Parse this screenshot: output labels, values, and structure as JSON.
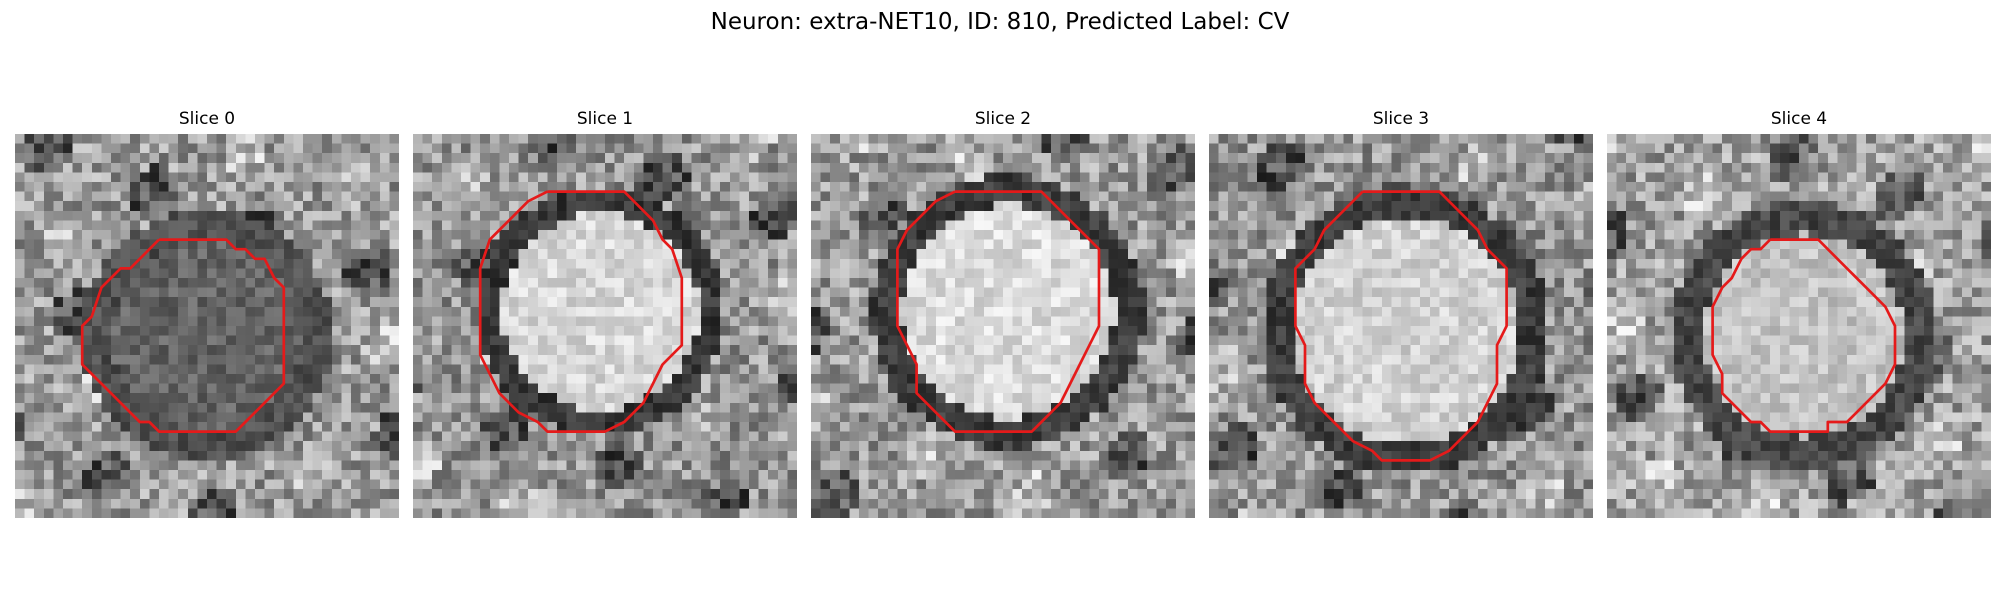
{
  "figure": {
    "title": "Neuron: extra-NET10, ID: 810, Predicted Label: CV"
  },
  "panels": [
    {
      "title": "Slice 0",
      "contour": [
        [
          15,
          11
        ],
        [
          22,
          11
        ],
        [
          23,
          12
        ],
        [
          24,
          12
        ],
        [
          25,
          13
        ],
        [
          26,
          13
        ],
        [
          27,
          15
        ],
        [
          28,
          16
        ],
        [
          28,
          26
        ],
        [
          27,
          27
        ],
        [
          26,
          28
        ],
        [
          25,
          29
        ],
        [
          24,
          30
        ],
        [
          23,
          31
        ],
        [
          15,
          31
        ],
        [
          14,
          30
        ],
        [
          13,
          30
        ],
        [
          12,
          29
        ],
        [
          11,
          28
        ],
        [
          10,
          27
        ],
        [
          9,
          26
        ],
        [
          8,
          25
        ],
        [
          7,
          24
        ],
        [
          7,
          20
        ],
        [
          8,
          19
        ],
        [
          9,
          16
        ],
        [
          10,
          15
        ],
        [
          11,
          14
        ],
        [
          12,
          14
        ],
        [
          13,
          13
        ],
        [
          14,
          12
        ]
      ]
    },
    {
      "title": "Slice 1",
      "contour": [
        [
          14,
          6
        ],
        [
          22,
          6
        ],
        [
          23,
          7
        ],
        [
          24,
          8
        ],
        [
          25,
          9
        ],
        [
          26,
          11
        ],
        [
          27,
          12
        ],
        [
          28,
          15
        ],
        [
          28,
          22
        ],
        [
          27,
          23
        ],
        [
          26,
          24
        ],
        [
          25,
          26
        ],
        [
          24,
          28
        ],
        [
          23,
          29
        ],
        [
          22,
          30
        ],
        [
          20,
          31
        ],
        [
          14,
          31
        ],
        [
          13,
          30
        ],
        [
          11,
          29
        ],
        [
          10,
          28
        ],
        [
          9,
          27
        ],
        [
          8,
          25
        ],
        [
          7,
          23
        ],
        [
          7,
          14
        ],
        [
          8,
          11
        ],
        [
          9,
          10
        ],
        [
          10,
          9
        ],
        [
          11,
          8
        ],
        [
          12,
          7
        ]
      ]
    },
    {
      "title": "Slice 2",
      "contour": [
        [
          15,
          6
        ],
        [
          24,
          6
        ],
        [
          25,
          7
        ],
        [
          26,
          8
        ],
        [
          27,
          9
        ],
        [
          28,
          10
        ],
        [
          29,
          11
        ],
        [
          30,
          12
        ],
        [
          30,
          20
        ],
        [
          29,
          22
        ],
        [
          28,
          24
        ],
        [
          27,
          26
        ],
        [
          26,
          28
        ],
        [
          25,
          29
        ],
        [
          24,
          30
        ],
        [
          23,
          31
        ],
        [
          15,
          31
        ],
        [
          14,
          30
        ],
        [
          13,
          29
        ],
        [
          12,
          28
        ],
        [
          11,
          27
        ],
        [
          11,
          24
        ],
        [
          10,
          22
        ],
        [
          9,
          20
        ],
        [
          9,
          12
        ],
        [
          10,
          10
        ],
        [
          11,
          9
        ],
        [
          12,
          8
        ],
        [
          13,
          7
        ]
      ]
    },
    {
      "title": "Slice 3",
      "contour": [
        [
          16,
          6
        ],
        [
          24,
          6
        ],
        [
          25,
          7
        ],
        [
          26,
          8
        ],
        [
          27,
          9
        ],
        [
          28,
          10
        ],
        [
          29,
          12
        ],
        [
          30,
          13
        ],
        [
          31,
          14
        ],
        [
          31,
          20
        ],
        [
          30,
          22
        ],
        [
          30,
          26
        ],
        [
          29,
          28
        ],
        [
          28,
          30
        ],
        [
          27,
          31
        ],
        [
          26,
          32
        ],
        [
          25,
          33
        ],
        [
          23,
          34
        ],
        [
          18,
          34
        ],
        [
          17,
          33
        ],
        [
          15,
          32
        ],
        [
          14,
          31
        ],
        [
          13,
          30
        ],
        [
          12,
          29
        ],
        [
          11,
          28
        ],
        [
          10,
          26
        ],
        [
          10,
          22
        ],
        [
          9,
          20
        ],
        [
          9,
          14
        ],
        [
          10,
          13
        ],
        [
          11,
          12
        ],
        [
          12,
          10
        ],
        [
          13,
          9
        ],
        [
          14,
          8
        ],
        [
          15,
          7
        ]
      ]
    },
    {
      "title": "Slice 4",
      "contour": [
        [
          17,
          11
        ],
        [
          22,
          11
        ],
        [
          23,
          12
        ],
        [
          24,
          13
        ],
        [
          25,
          14
        ],
        [
          26,
          15
        ],
        [
          27,
          16
        ],
        [
          28,
          17
        ],
        [
          29,
          18
        ],
        [
          30,
          20
        ],
        [
          30,
          24
        ],
        [
          29,
          26
        ],
        [
          28,
          27
        ],
        [
          27,
          28
        ],
        [
          26,
          29
        ],
        [
          25,
          30
        ],
        [
          23,
          30
        ],
        [
          23,
          31
        ],
        [
          17,
          31
        ],
        [
          16,
          30
        ],
        [
          15,
          30
        ],
        [
          14,
          29
        ],
        [
          13,
          28
        ],
        [
          12,
          27
        ],
        [
          12,
          25
        ],
        [
          11,
          23
        ],
        [
          11,
          18
        ],
        [
          12,
          16
        ],
        [
          13,
          15
        ],
        [
          14,
          13
        ],
        [
          15,
          12
        ],
        [
          16,
          12
        ]
      ]
    }
  ],
  "colors": {
    "contour": "#e51a1a"
  }
}
